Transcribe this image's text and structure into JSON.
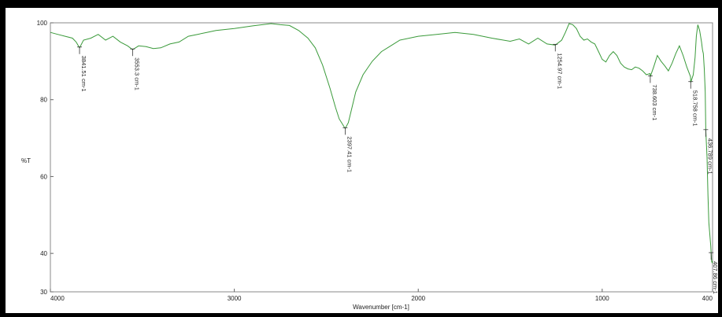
{
  "chart_data": {
    "type": "line",
    "title": "",
    "xlabel": "Wavenumber [cm-1]",
    "ylabel": "%T",
    "xlim": [
      4000,
      400
    ],
    "ylim": [
      30,
      100
    ],
    "x_reversed": true,
    "x_ticks": [
      "4000",
      "3000",
      "2000",
      "1000",
      "400"
    ],
    "x_tick_values": [
      4000,
      3000,
      2000,
      1000,
      400
    ],
    "y_ticks": [
      "30",
      "40",
      "60",
      "80",
      "100"
    ],
    "y_tick_values": [
      30,
      40,
      60,
      80,
      100
    ],
    "line_color": "#3a9a3a",
    "series": [
      {
        "x": [
          4000,
          3960,
          3920,
          3880,
          3860,
          3841.51,
          3820,
          3780,
          3740,
          3700,
          3660,
          3620,
          3580,
          3553.3,
          3520,
          3480,
          3440,
          3400,
          3350,
          3300,
          3250,
          3200,
          3150,
          3100,
          3000,
          2900,
          2800,
          2750,
          2700,
          2650,
          2600,
          2560,
          2520,
          2480,
          2450,
          2430,
          2410,
          2397.41,
          2380,
          2360,
          2340,
          2300,
          2250,
          2200,
          2150,
          2100,
          2000,
          1900,
          1800,
          1700,
          1600,
          1500,
          1450,
          1400,
          1350,
          1300,
          1254.97,
          1220,
          1200,
          1180,
          1160,
          1140,
          1120,
          1100,
          1080,
          1060,
          1040,
          1020,
          1000,
          980,
          960,
          940,
          920,
          900,
          880,
          860,
          840,
          820,
          800,
          780,
          760,
          740,
          738.603,
          720,
          700,
          680,
          660,
          640,
          620,
          600,
          580,
          560,
          540,
          520,
          518.758,
          505,
          495,
          488,
          480,
          470,
          460,
          455,
          450,
          445,
          440,
          436.789,
          430,
          425,
          420,
          415,
          410,
          407.86,
          405,
          402,
          400
        ],
        "y": [
          97.5,
          97,
          96.5,
          96,
          95,
          93.5,
          95.5,
          96,
          97,
          95.5,
          96.5,
          95,
          94,
          93,
          94,
          93.8,
          93.3,
          93.5,
          94.5,
          95,
          96.5,
          97,
          97.5,
          98,
          98.5,
          99.2,
          99.8,
          99.5,
          99.3,
          98,
          96,
          93.5,
          89,
          83,
          78,
          75,
          73.5,
          72.5,
          74,
          78,
          82,
          86.5,
          90,
          92.5,
          94,
          95.5,
          96.5,
          97,
          97.5,
          97,
          96,
          95.2,
          95.8,
          94.5,
          96,
          94.5,
          94.2,
          95.5,
          97.5,
          99.8,
          99.5,
          98.5,
          96.5,
          95.5,
          95.8,
          95,
          94.5,
          92.5,
          90.5,
          89.8,
          91.5,
          92.5,
          91.5,
          89.5,
          88.5,
          88,
          87.8,
          88.5,
          88.2,
          87.5,
          86.5,
          86.8,
          86,
          88.5,
          91.5,
          90,
          88.8,
          87.5,
          89.5,
          92,
          94,
          91.5,
          88.5,
          86,
          84.5,
          86.5,
          91,
          96.5,
          99.5,
          98,
          95,
          93,
          92,
          88,
          82,
          72,
          65,
          55,
          48,
          45,
          42,
          40,
          38,
          37.5,
          38
        ]
      }
    ],
    "peaks": [
      {
        "x": 3841.51,
        "y": 93.5,
        "label": "3841.51 cm-1"
      },
      {
        "x": 3553.3,
        "y": 93,
        "label": "3553.3 cm-1"
      },
      {
        "x": 2397.41,
        "y": 72.5,
        "label": "2397.41 cm-1"
      },
      {
        "x": 1254.97,
        "y": 94.2,
        "label": "1254.97 cm-1"
      },
      {
        "x": 738.603,
        "y": 86,
        "label": "738.603 cm-1"
      },
      {
        "x": 518.758,
        "y": 84.5,
        "label": "518.758 cm-1"
      },
      {
        "x": 436.789,
        "y": 72,
        "label": "436.789 cm-1"
      },
      {
        "x": 407.86,
        "y": 40,
        "label": "407.86 cm-1"
      }
    ]
  }
}
